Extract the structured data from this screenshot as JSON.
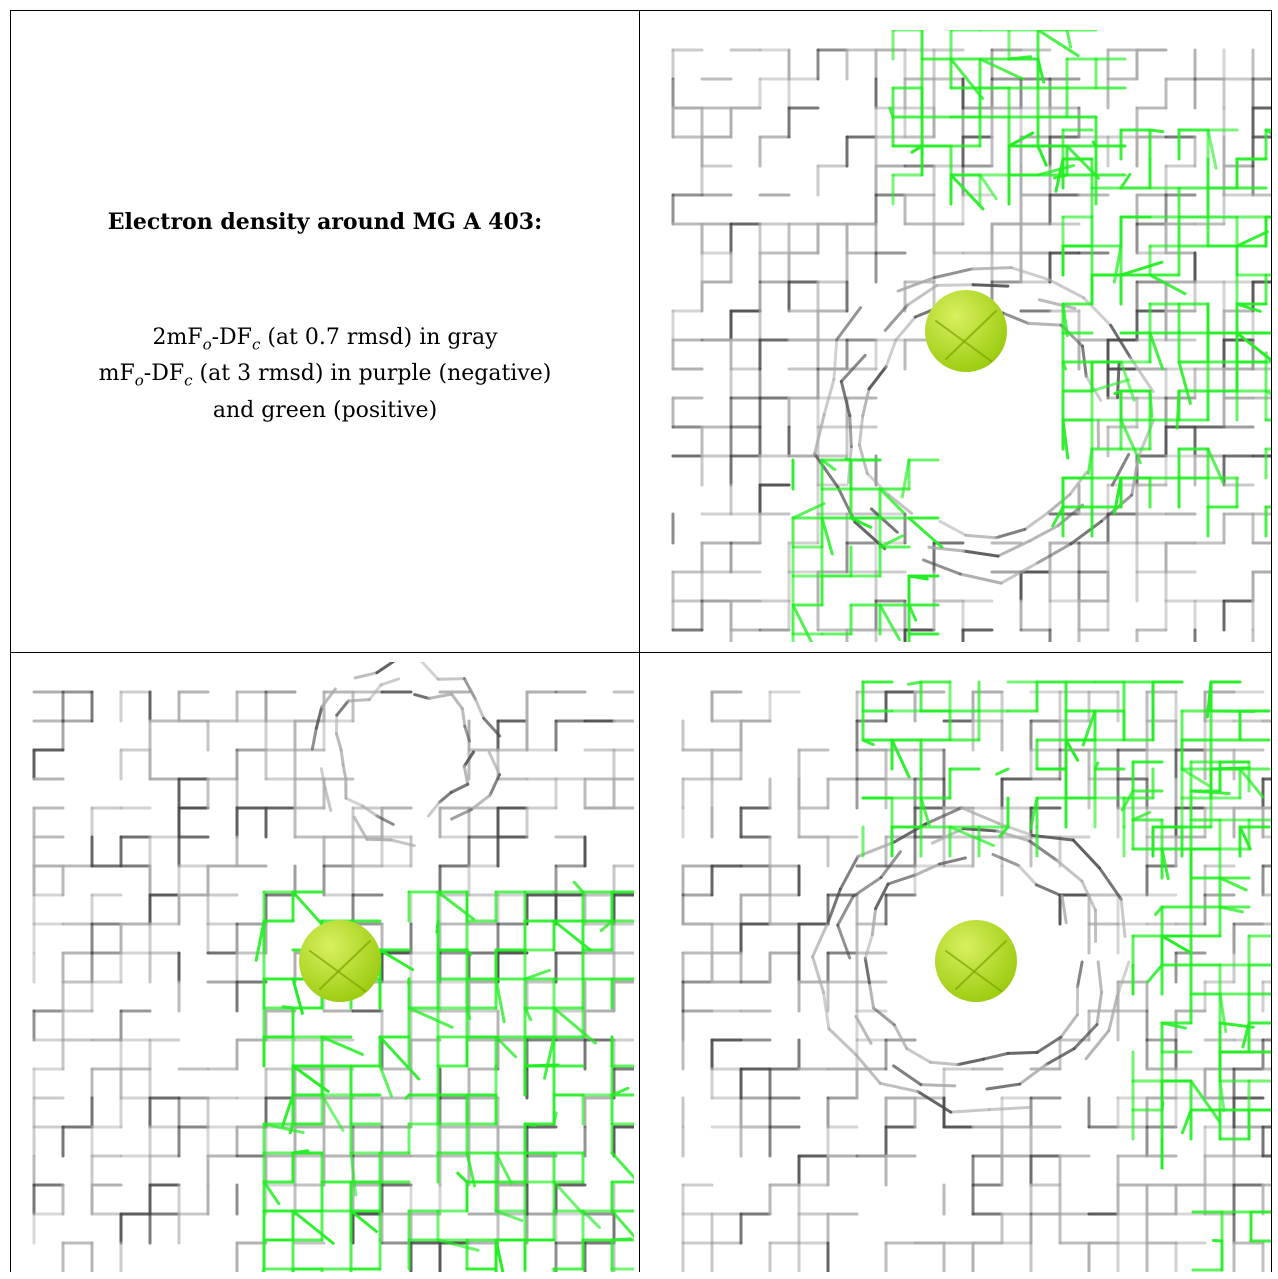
{
  "caption": {
    "title": "Electron density around MG A 403:",
    "line1_pre": "2mF",
    "line1_sub1": "o",
    "line1_mid": "-DF",
    "line1_sub2": "c",
    "line1_post": " (at 0.7 rmsd) in gray",
    "line2_pre": "mF",
    "line2_sub1": "o",
    "line2_mid": "-DF",
    "line2_sub2": "c",
    "line2_post": " (at 3 rmsd) in purple (negative)",
    "line3": "and green (positive)"
  },
  "colors": {
    "gray_mesh": "#a9a9a9",
    "dark_mesh": "#4a4a4a",
    "green_mesh": "#22ee22",
    "atom": "#9ccc10",
    "atom_highlight": "#d8f060"
  },
  "panels": [
    {
      "name": "view-top-right",
      "atom": "MG"
    },
    {
      "name": "view-bottom-left",
      "atom": "MG"
    },
    {
      "name": "view-bottom-right",
      "atom": "MG"
    }
  ]
}
